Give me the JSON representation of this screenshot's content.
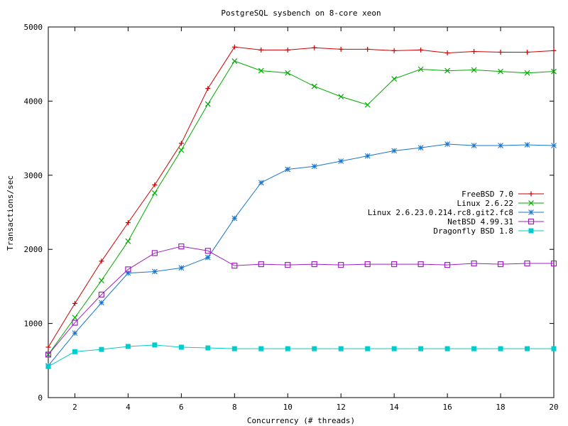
{
  "chart_data": {
    "type": "line",
    "title": "PostgreSQL sysbench on 8-core xeon",
    "xlabel": "Concurrency (# threads)",
    "ylabel": "Transactions/sec",
    "xlim": [
      1,
      20
    ],
    "ylim": [
      0,
      5000
    ],
    "xticks": [
      2,
      4,
      6,
      8,
      10,
      12,
      14,
      16,
      18,
      20
    ],
    "yticks": [
      0,
      1000,
      2000,
      3000,
      4000,
      5000
    ],
    "grid": false,
    "legend_position": "right",
    "x": [
      1,
      2,
      3,
      4,
      5,
      6,
      7,
      8,
      9,
      10,
      11,
      12,
      13,
      14,
      15,
      16,
      17,
      18,
      19,
      20
    ],
    "series": [
      {
        "name": "FreeBSD 7.0",
        "color": "#cc0000",
        "marker": "plus",
        "values": [
          680,
          1270,
          1840,
          2360,
          2870,
          3430,
          4170,
          4730,
          4690,
          4690,
          4720,
          4700,
          4700,
          4680,
          4690,
          4650,
          4670,
          4660,
          4660,
          4680
        ]
      },
      {
        "name": "Linux 2.6.22",
        "color": "#00aa00",
        "marker": "cross",
        "values": [
          580,
          1080,
          1580,
          2110,
          2760,
          3340,
          3960,
          4540,
          4410,
          4380,
          4200,
          4060,
          3950,
          4300,
          4430,
          4410,
          4420,
          4400,
          4380,
          4400
        ]
      },
      {
        "name": "Linux 2.6.23.0.214.rc8.git2.fc8",
        "color": "#1a75cc",
        "marker": "star",
        "values": [
          430,
          870,
          1280,
          1680,
          1700,
          1750,
          1890,
          2420,
          2900,
          3080,
          3120,
          3190,
          3260,
          3330,
          3370,
          3420,
          3400,
          3400,
          3410,
          3400
        ]
      },
      {
        "name": "NetBSD 4.99.31",
        "color": "#a020c0",
        "marker": "open-square",
        "values": [
          580,
          1010,
          1390,
          1730,
          1950,
          2040,
          1980,
          1780,
          1800,
          1790,
          1800,
          1790,
          1800,
          1800,
          1800,
          1790,
          1810,
          1800,
          1810,
          1810
        ]
      },
      {
        "name": "Dragonfly BSD 1.8",
        "color": "#00cccc",
        "marker": "filled-square",
        "values": [
          420,
          620,
          650,
          690,
          710,
          680,
          670,
          660,
          660,
          660,
          660,
          660,
          660,
          660,
          660,
          660,
          660,
          660,
          660,
          660
        ]
      }
    ]
  }
}
